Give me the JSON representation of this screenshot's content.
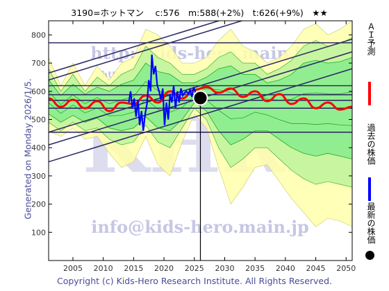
{
  "title": "3190=ホットマン　 c:576　m:588(+2%)　t:626(+9%)　★★",
  "generated_text": "Generated on Monday 2026/1/5.",
  "copyright_text": "Copyright (c) Kids-Hero Research Institute. All Rights Reserved.",
  "watermarks": {
    "url_top": "http://kids-hero.main.jp",
    "url_mid": "http://kids-hero.main.jp/kabu/3190.htm",
    "big": "KHRI",
    "email": "info@kids-hero.main.jp"
  },
  "legend": {
    "forecast_label": "ＡＩ予測",
    "past_label": "過去の株価",
    "latest_label": "最新の株価",
    "forecast_color": "#ff0000",
    "past_color": "#0000ff",
    "latest_color": "#000000"
  },
  "colors": {
    "band_outer": "#ffffaa",
    "band_mid": "#c8f5a0",
    "band_inner": "#90ee90",
    "band_line": "#22aa22",
    "trend": "#2e2e66",
    "watermark": "#c6c6e4"
  },
  "chart_data": {
    "type": "line",
    "xlim": [
      2001,
      2051
    ],
    "ylim": [
      0,
      850
    ],
    "x_ticks": [
      2005,
      2010,
      2015,
      2020,
      2025,
      2030,
      2035,
      2040,
      2045,
      2050
    ],
    "y_ticks": [
      100,
      200,
      300,
      400,
      500,
      600,
      700,
      800
    ],
    "grid": false,
    "current": {
      "x": 2026.0,
      "y": 576
    },
    "horizontal_levels": [
      455,
      540,
      568,
      588,
      620,
      772
    ],
    "trend_lines": [
      {
        "x": [
          2001,
          2051
        ],
        "y": [
          350,
          680
        ]
      },
      {
        "x": [
          2001,
          2051
        ],
        "y": [
          410,
          740
        ]
      },
      {
        "x": [
          2001,
          2051
        ],
        "y": [
          455,
          785
        ]
      },
      {
        "x": [
          2001,
          2051
        ],
        "y": [
          640,
          970
        ]
      },
      {
        "x": [
          2001,
          2051
        ],
        "y": [
          665,
          995
        ]
      }
    ],
    "series": [
      {
        "name": "過去の株価",
        "x": [
          2014.2,
          2014.5,
          2014.8,
          2015.1,
          2015.4,
          2015.7,
          2016.0,
          2016.3,
          2016.6,
          2016.9,
          2017.2,
          2017.5,
          2017.8,
          2018.0,
          2018.3,
          2018.6,
          2018.9,
          2019.2,
          2019.5,
          2019.8,
          2020.1,
          2020.4,
          2020.7,
          2021.0,
          2021.3,
          2021.6,
          2021.9,
          2022.2,
          2022.5,
          2022.8,
          2023.1,
          2023.4,
          2023.7,
          2024.0,
          2024.3,
          2024.6,
          2024.9,
          2025.2,
          2025.5,
          2025.8
        ],
        "y": [
          560,
          600,
          540,
          575,
          510,
          570,
          480,
          530,
          460,
          520,
          555,
          640,
          600,
          730,
          660,
          690,
          620,
          600,
          570,
          610,
          480,
          560,
          500,
          590,
          560,
          620,
          540,
          600,
          560,
          610,
          585,
          595,
          600,
          590,
          605,
          580,
          615,
          595,
          590,
          580
        ]
      },
      {
        "name": "ＡＩ予測",
        "x": [
          2001,
          2003,
          2005,
          2007,
          2009,
          2011,
          2013,
          2015,
          2017,
          2019,
          2021,
          2023,
          2025,
          2027,
          2029,
          2031,
          2033,
          2035,
          2037,
          2039,
          2041,
          2043,
          2045,
          2047,
          2049,
          2051
        ],
        "y": [
          575,
          545,
          570,
          540,
          565,
          530,
          560,
          555,
          585,
          560,
          600,
          575,
          605,
          615,
          595,
          610,
          580,
          600,
          565,
          590,
          555,
          575,
          540,
          560,
          535,
          545
        ]
      }
    ],
    "bands": {
      "x": [
        2001,
        2003,
        2005,
        2007,
        2009,
        2011,
        2013,
        2015,
        2017,
        2019,
        2021,
        2023,
        2025,
        2027,
        2029,
        2031,
        2033,
        2035,
        2037,
        2039,
        2041,
        2043,
        2045,
        2047,
        2049,
        2051
      ],
      "outer_upper": [
        720,
        620,
        700,
        620,
        690,
        640,
        700,
        720,
        820,
        800,
        760,
        700,
        700,
        720,
        780,
        820,
        760,
        740,
        700,
        720,
        760,
        820,
        840,
        800,
        820,
        850
      ],
      "outer_lower": [
        460,
        440,
        470,
        430,
        440,
        380,
        330,
        350,
        440,
        340,
        300,
        420,
        520,
        470,
        330,
        200,
        260,
        330,
        340,
        280,
        220,
        170,
        120,
        150,
        140,
        120
      ],
      "mid_upper": [
        680,
        600,
        660,
        600,
        650,
        620,
        660,
        680,
        760,
        720,
        700,
        660,
        660,
        680,
        720,
        740,
        700,
        700,
        660,
        680,
        710,
        760,
        780,
        760,
        770,
        790
      ],
      "mid_lower": [
        490,
        460,
        490,
        460,
        470,
        430,
        410,
        420,
        480,
        420,
        400,
        470,
        540,
        500,
        400,
        330,
        360,
        400,
        400,
        360,
        320,
        290,
        270,
        280,
        270,
        260
      ],
      "inner_upper": [
        640,
        585,
        625,
        590,
        615,
        600,
        625,
        640,
        700,
        670,
        660,
        630,
        630,
        650,
        680,
        690,
        660,
        660,
        630,
        640,
        660,
        700,
        710,
        700,
        705,
        720
      ],
      "inner_lower": [
        520,
        490,
        515,
        490,
        505,
        470,
        460,
        470,
        510,
        470,
        460,
        500,
        560,
        530,
        460,
        410,
        430,
        460,
        460,
        430,
        400,
        380,
        370,
        380,
        370,
        360
      ]
    }
  }
}
